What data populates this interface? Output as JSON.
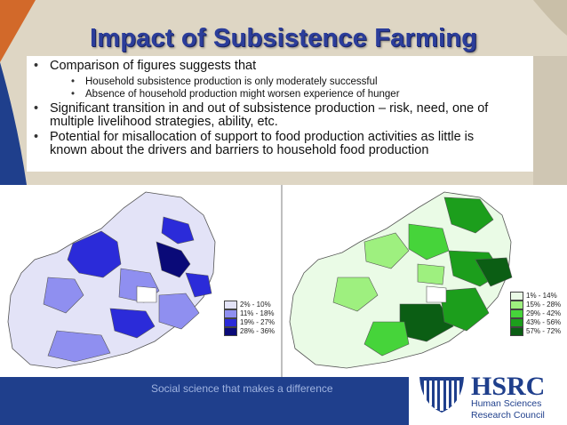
{
  "slide": {
    "title": "Impact of Subsistence Farming",
    "bullets": [
      {
        "text": "Comparison of figures suggests that",
        "sub": [
          "Household subsistence production is only moderately successful",
          "Absence of household production might worsen experience of hunger"
        ]
      },
      {
        "text_line1": "Significant transition in and out of subsistence production – risk, need, one of",
        "text_line2": "multiple livelihood strategies, ability, etc."
      },
      {
        "text_line1": "Potential for misallocation of support to food production activities as little is",
        "text_line2": "known about the drivers and barriers to household food production"
      }
    ],
    "bullet_glyph": "•"
  },
  "map_left": {
    "legend": [
      {
        "label": "2% - 10%",
        "color": "#e3e3f7"
      },
      {
        "label": "11% - 18%",
        "color": "#8f8ff0"
      },
      {
        "label": "19% - 27%",
        "color": "#2b2bd9"
      },
      {
        "label": "28% - 36%",
        "color": "#0a0a78"
      }
    ]
  },
  "map_right": {
    "legend": [
      {
        "label": "1% - 14%",
        "color": "#eafbe6"
      },
      {
        "label": "15% - 28%",
        "color": "#9ef07f"
      },
      {
        "label": "29% - 42%",
        "color": "#46d43a"
      },
      {
        "label": "43% - 56%",
        "color": "#1c9e1c"
      },
      {
        "label": "57% - 72%",
        "color": "#0b5e14"
      }
    ]
  },
  "footer": {
    "tagline": "Social science that makes a difference",
    "logo_main": "HSRC",
    "logo_sub1": "Human Sciences",
    "logo_sub2": "Research Council",
    "logo_icon": "hsrc-emblem-icon"
  }
}
